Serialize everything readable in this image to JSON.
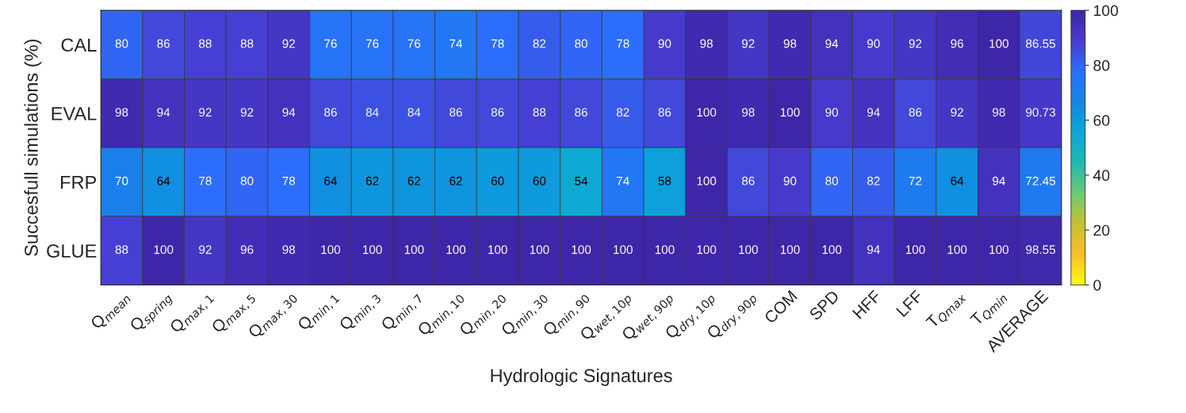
{
  "chart_data": {
    "type": "heatmap",
    "xlabel": "Hydrologic Signatures",
    "ylabel": "Succesfull simulations (%)",
    "categories": [
      "Q$_{mean}$",
      "Q$_{spring}$",
      "Q$_{max,1}$",
      "Q$_{max,5}$",
      "Q$_{max,30}$",
      "Q$_{min,1}$",
      "Q$_{min,3}$",
      "Q$_{min,7}$",
      "Q$_{min,10}$",
      "Q$_{min,20}$",
      "Q$_{min,30}$",
      "Q$_{min,90}$",
      "Q$_{wet,10p}$",
      "Q$_{wet,90p}$",
      "Q$_{dry,10p}$",
      "Q$_{dry,90p}$",
      "COM",
      "SPD",
      "HFF",
      "LFF",
      "T$_{Qmax}$",
      "T$_{Qmin}$",
      "AVERAGE"
    ],
    "y_categories": [
      "CAL",
      "EVAL",
      "FRP",
      "GLUE"
    ],
    "cells": [
      [
        80,
        86,
        88,
        88,
        92,
        76,
        76,
        76,
        74,
        78,
        82,
        80,
        78,
        90,
        98,
        92,
        98,
        94,
        90,
        92,
        96,
        100,
        86.55
      ],
      [
        98,
        94,
        92,
        92,
        94,
        86,
        84,
        84,
        86,
        86,
        88,
        86,
        82,
        86,
        100,
        98,
        100,
        90,
        94,
        86,
        92,
        98,
        90.73
      ],
      [
        70,
        64,
        78,
        80,
        78,
        64,
        62,
        62,
        62,
        60,
        60,
        54,
        74,
        58,
        100,
        86,
        90,
        80,
        82,
        72,
        64,
        94,
        72.45
      ],
      [
        88,
        100,
        92,
        96,
        98,
        100,
        100,
        100,
        100,
        100,
        100,
        100,
        100,
        100,
        100,
        100,
        100,
        100,
        94,
        100,
        100,
        100,
        98.55
      ]
    ],
    "data_labels": true,
    "clim": [
      0,
      100
    ],
    "cticks": [
      0,
      20,
      40,
      60,
      80,
      100
    ]
  }
}
